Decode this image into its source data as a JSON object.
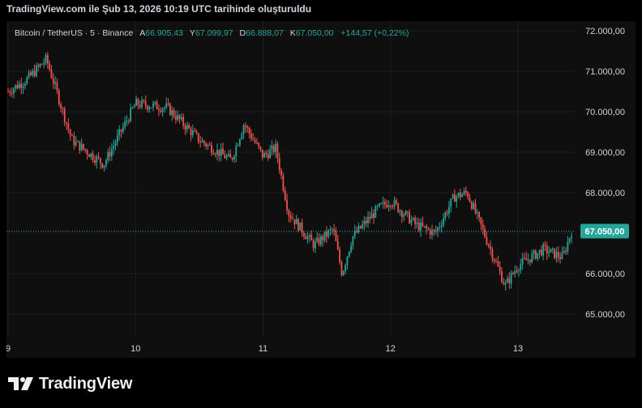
{
  "header": {
    "created_text": "TradingView.com ile Şub 13, 2026 10:19 UTC tarihinde oluşturuldu"
  },
  "legend": {
    "symbol": "Bitcoin / TetherUS · 5 · Binance",
    "open_key": "A",
    "open": "66.905,43",
    "high_key": "Y",
    "high": "67.099,97",
    "low_key": "D",
    "low": "66.888,07",
    "close_key": "K",
    "close": "67.050,00",
    "change": "+144,57 (+0,22%)"
  },
  "brand": {
    "name": "TradingView"
  },
  "colors": {
    "background": "#000000",
    "panel": "#0f0f0f",
    "up": "#26a69a",
    "down": "#ef5350",
    "grid": "#1e1e1e",
    "price_badge": "#26a69a"
  },
  "chart_data": {
    "type": "candlestick",
    "title": "Bitcoin / TetherUS · 5 · Binance",
    "x_ticks": [
      "9",
      "10",
      "11",
      "12",
      "13"
    ],
    "y_ticks": [
      "72.000,00",
      "71.000,00",
      "70.000,00",
      "69.000,00",
      "68.000,00",
      "66.000,00",
      "65.000,00"
    ],
    "y_tick_values": [
      72000,
      71000,
      70000,
      69000,
      68000,
      66000,
      65000
    ],
    "ylim": [
      64200,
      72300
    ],
    "last_price": 67050,
    "last_price_label": "67.050,00",
    "grid": true,
    "series": [
      {
        "name": "close",
        "x": [
          9.0,
          9.15,
          9.3,
          9.5,
          9.75,
          10.0,
          10.25,
          10.5,
          10.75,
          10.85,
          11.0,
          11.1,
          11.2,
          11.4,
          11.55,
          11.62,
          11.7,
          11.9,
          12.0,
          12.2,
          12.35,
          12.5,
          12.6,
          12.72,
          12.9,
          13.0,
          13.2,
          13.35,
          13.42
        ],
        "y": [
          70500,
          70800,
          71300,
          69300,
          68700,
          70200,
          70100,
          69300,
          68800,
          69700,
          68900,
          69100,
          67500,
          66700,
          67100,
          66000,
          66900,
          67600,
          67800,
          67200,
          67000,
          67900,
          68000,
          67100,
          65700,
          66200,
          66600,
          66400,
          67050
        ]
      }
    ]
  }
}
